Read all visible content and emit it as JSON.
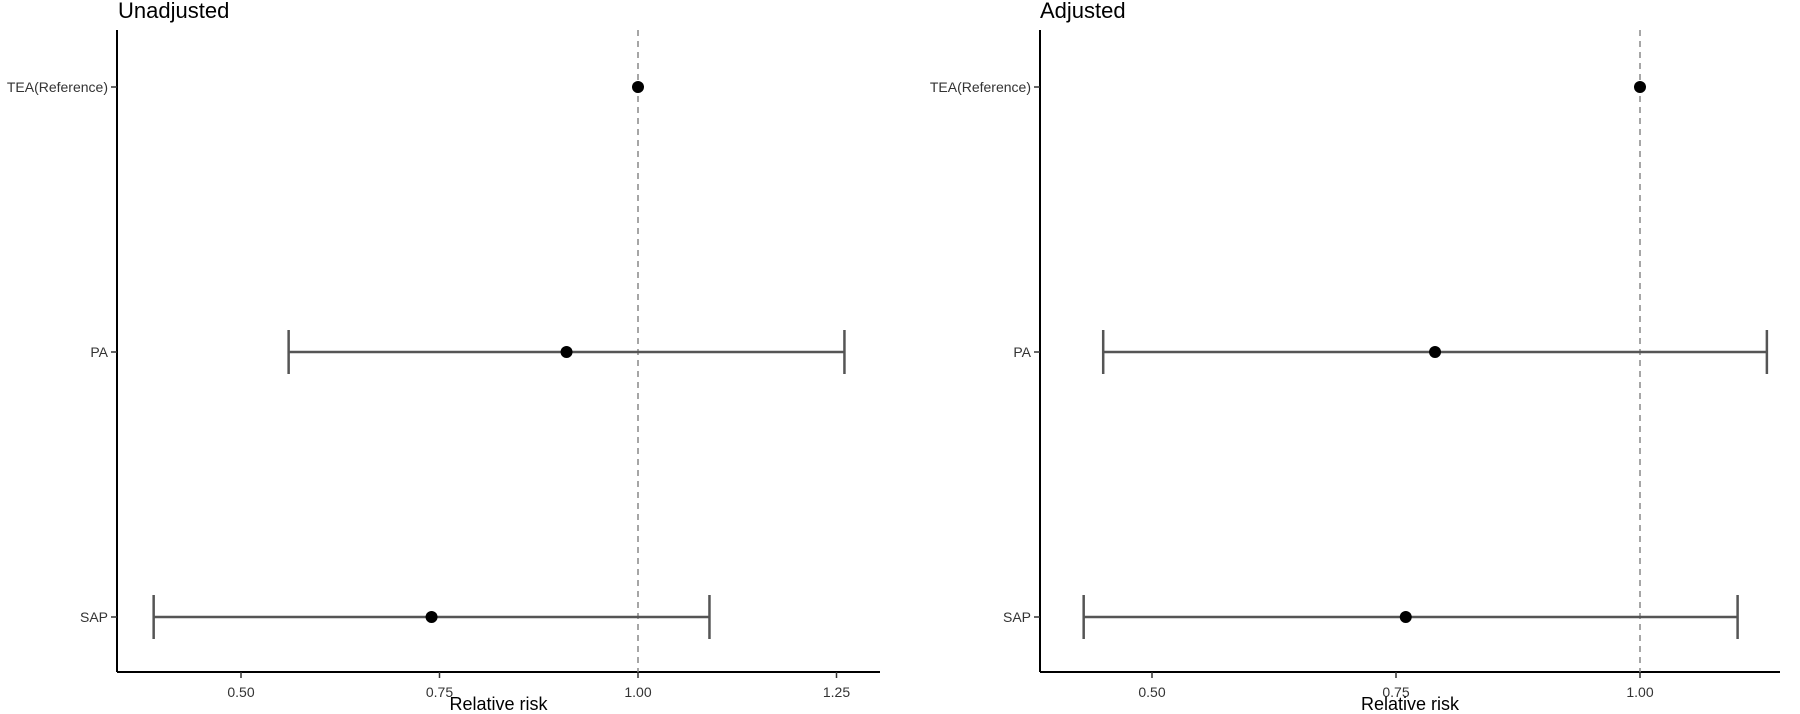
{
  "chart_data": [
    {
      "type": "forest",
      "title": "Unadjusted",
      "xlabel": "Relative risk",
      "ylabel": "",
      "xlim": [
        0.35,
        1.3
      ],
      "xticks": [
        "0.50",
        "0.75",
        "1.00",
        "1.25"
      ],
      "reference_line": 1.0,
      "reference_line_style": "dashed",
      "grid": false,
      "categories": [
        "TEA(Reference)",
        "PA",
        "SAP"
      ],
      "estimates": [
        1.0,
        0.91,
        0.74
      ],
      "ci_lower": [
        null,
        0.56,
        0.39
      ],
      "ci_upper": [
        null,
        1.26,
        1.09
      ]
    },
    {
      "type": "forest",
      "title": "Adjusted",
      "xlabel": "Relative risk",
      "ylabel": "",
      "xlim": [
        0.41,
        1.15
      ],
      "xticks": [
        "0.50",
        "0.75",
        "1.00"
      ],
      "reference_line": 1.0,
      "reference_line_style": "dashed",
      "grid": false,
      "categories": [
        "TEA(Reference)",
        "PA",
        "SAP"
      ],
      "estimates": [
        1.0,
        0.79,
        0.76
      ],
      "ci_lower": [
        null,
        0.45,
        0.43
      ],
      "ci_upper": [
        null,
        1.13,
        1.1
      ]
    }
  ]
}
